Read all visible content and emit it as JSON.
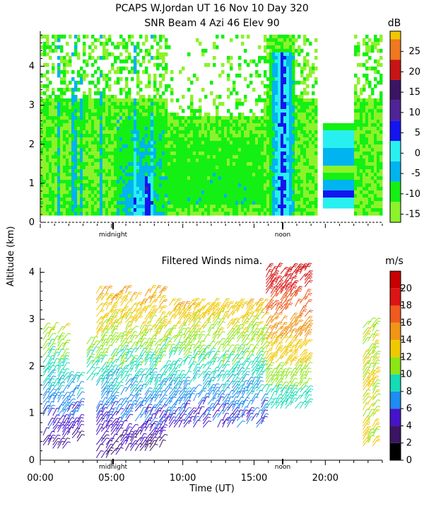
{
  "header": {
    "line1": "PCAPS W.Jordan UT  16 Nov 10 Day 320",
    "line2": "SNR Beam 4 Azi  46 Elev 90"
  },
  "shared": {
    "ylabel": "Altitude (km)",
    "xlabel": "Time (UT)",
    "marker_midnight": "midnight",
    "marker_noon": "noon"
  },
  "colors": {
    "snr_scale": [
      "#8cf22a",
      "#14f014",
      "#00b4f0",
      "#28f0f0",
      "#1414f0",
      "#502396",
      "#3c1464",
      "#c81414",
      "#f0781e",
      "#f0c800"
    ],
    "wind_scale": [
      "#000000",
      "#3c1464",
      "#4614c8",
      "#1e8cf0",
      "#14dcb4",
      "#8ce614",
      "#f0c800",
      "#f09614",
      "#f05a1e",
      "#dc1414",
      "#c80000"
    ]
  },
  "chart_data": [
    {
      "type": "heatmap",
      "name": "snr",
      "unit_label": "dB",
      "ylim": [
        0,
        4.9
      ],
      "yticks": [
        0,
        1,
        2,
        3,
        4
      ],
      "colorbar_ticks": [
        -15,
        -10,
        -5,
        0,
        5,
        10,
        15,
        20,
        25
      ],
      "colorbar_range": [
        -17,
        30
      ],
      "x_hours": [
        0,
        24
      ],
      "notes_regions": [
        {
          "t0": 0.0,
          "t1": 19.2,
          "h0": 0.2,
          "h1": 4.8,
          "level": "low"
        },
        {
          "t0": 5.3,
          "t1": 8.8,
          "h0": 0.2,
          "h1": 2.8,
          "level": "high"
        },
        {
          "t0": 16.0,
          "t1": 17.6,
          "h0": 0.3,
          "h1": 4.2,
          "level": "high"
        },
        {
          "t0": 19.8,
          "t1": 21.9,
          "h0": 0.4,
          "h1": 2.6,
          "level": "mid"
        },
        {
          "t0": 21.9,
          "t1": 24.0,
          "h0": 0.2,
          "h1": 2.8,
          "level": "low"
        }
      ]
    },
    {
      "type": "scatter",
      "name": "filtered_winds",
      "title": "Filtered Winds nima.",
      "unit_label": "m/s",
      "ylim": [
        0,
        4.1
      ],
      "yticks": [
        0,
        1,
        2,
        3,
        4
      ],
      "xticks": [
        "00:00",
        "05:00",
        "10:00",
        "15:00",
        "20:00"
      ],
      "xtick_hours": [
        0,
        5,
        10,
        15,
        20
      ],
      "x_hours": [
        0,
        24
      ],
      "colorbar_ticks": [
        0,
        2,
        4,
        6,
        8,
        10,
        12,
        14,
        16,
        18,
        20
      ],
      "colorbar_range": [
        0,
        22
      ]
    }
  ]
}
